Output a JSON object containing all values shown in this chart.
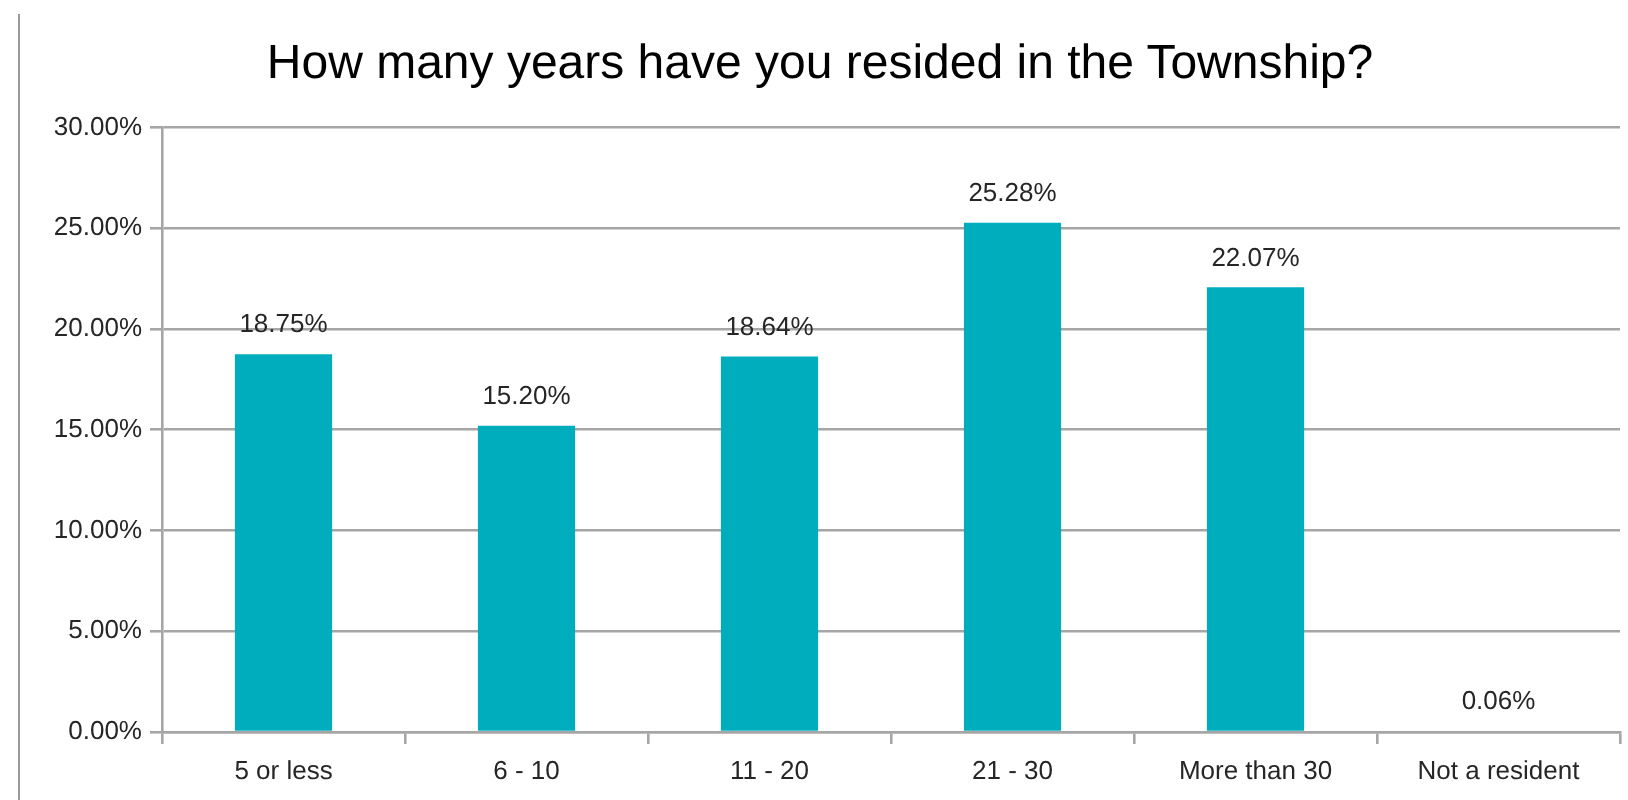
{
  "chart_data": {
    "type": "bar",
    "title": "How many years have you resided in the Township?",
    "categories": [
      "5 or less",
      "6 - 10",
      "11 - 20",
      "21 - 30",
      "More than 30",
      "Not a resident"
    ],
    "values": [
      18.75,
      15.2,
      18.64,
      25.28,
      22.07,
      0.06
    ],
    "color": "#00adbd",
    "value_labels": [
      "18.75%",
      "15.20%",
      "18.64%",
      "25.28%",
      "22.07%",
      "0.06%"
    ],
    "ylim": [
      0,
      30
    ],
    "yticks": [
      {
        "value": 0,
        "label": "0.00%"
      },
      {
        "value": 5,
        "label": "5.00%"
      },
      {
        "value": 10,
        "label": "10.00%"
      },
      {
        "value": 15,
        "label": "15.00%"
      },
      {
        "value": 20,
        "label": "20.00%"
      },
      {
        "value": 25,
        "label": "25.00%"
      },
      {
        "value": 30,
        "label": "30.00%"
      }
    ],
    "grid": "y"
  }
}
